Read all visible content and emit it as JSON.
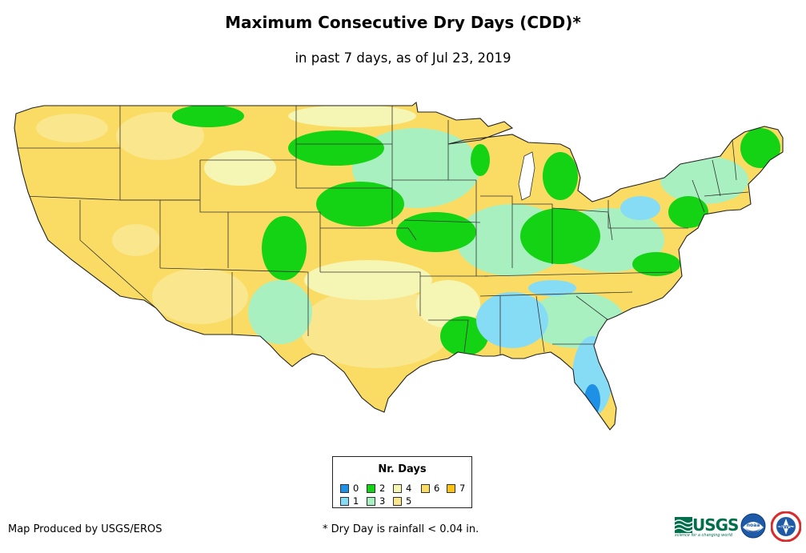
{
  "title": "Maximum Consecutive Dry Days (CDD)*",
  "subtitle": "in past 7 days, as of Jul 23, 2019",
  "legend": {
    "title": "Nr. Days",
    "items": [
      {
        "label": "0",
        "color": "#1e90e6"
      },
      {
        "label": "1",
        "color": "#87dcf5"
      },
      {
        "label": "2",
        "color": "#14d214"
      },
      {
        "label": "3",
        "color": "#a8f0c0"
      },
      {
        "label": "4",
        "color": "#f5f5b4"
      },
      {
        "label": "5",
        "color": "#fae68c"
      },
      {
        "label": "6",
        "color": "#fadc64"
      },
      {
        "label": "7",
        "color": "#fac314"
      }
    ]
  },
  "credit": "Map Produced by USGS/EROS",
  "footnote": "* Dry Day is rainfall < 0.04 in.",
  "logos": {
    "usgs": "USGS",
    "usgs_tagline": "science for a changing world",
    "noaa": "noaa",
    "nws": "NWS"
  },
  "icons": {
    "usgs": "usgs-logo-icon",
    "noaa": "noaa-logo-icon",
    "nws": "nws-logo-icon"
  }
}
